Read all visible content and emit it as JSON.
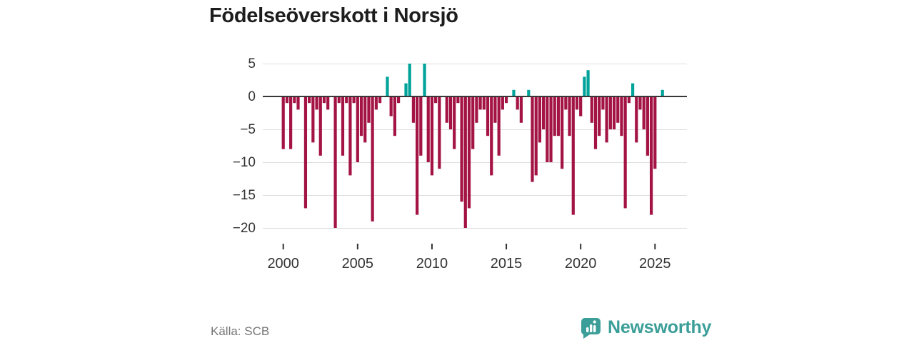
{
  "title": "Födelseöverskott i Norsjö",
  "source": "Källa: SCB",
  "brand": {
    "name": "Newsworthy",
    "color": "#3b9e98"
  },
  "colors": {
    "negative": "#a31344",
    "positive": "#00a39a",
    "grid": "#dedede",
    "zero_line": "#383838",
    "axis_text": "#333333",
    "tick_mark": "#333333"
  },
  "chart_data": {
    "type": "bar",
    "title": "Födelseöverskott i Norsjö",
    "frequency": "quarterly",
    "start_period": "2000-Q1",
    "end_period": "2025-Q3",
    "values": [
      -8,
      -1,
      -8,
      -1,
      -2,
      0,
      -17,
      -1,
      -7,
      -2,
      -9,
      -1,
      -2,
      0,
      -20,
      -1,
      -9,
      -1,
      -12,
      -1,
      -10,
      -6,
      -7,
      -4,
      -19,
      -2,
      -1,
      0,
      3,
      -3,
      -6,
      -1,
      0,
      2,
      5,
      -4,
      -18,
      -9,
      5,
      -10,
      -12,
      -1,
      -11,
      0,
      -4,
      -5,
      -8,
      -1,
      -16,
      -20,
      -17,
      -8,
      -4,
      -2,
      -2,
      -6,
      -12,
      -4,
      -9,
      -2,
      -1,
      0,
      1,
      -2,
      -4,
      0,
      1,
      -13,
      -12,
      -7,
      -5,
      -10,
      -10,
      -6,
      -6,
      -11,
      -2,
      -6,
      -18,
      -2,
      -3,
      3,
      4,
      -4,
      -8,
      -6,
      -2,
      -7,
      -5,
      -5,
      -4,
      -6,
      -17,
      -1,
      2,
      -7,
      -2,
      -5,
      -9,
      -18,
      -11,
      0,
      1
    ],
    "x_tick_labels": [
      "2000",
      "2005",
      "2010",
      "2015",
      "2020",
      "2025"
    ],
    "y_ticks": [
      5,
      0,
      -5,
      -10,
      -15,
      -20
    ],
    "ylim": [
      -20,
      5
    ],
    "grid": true,
    "legend": false
  }
}
